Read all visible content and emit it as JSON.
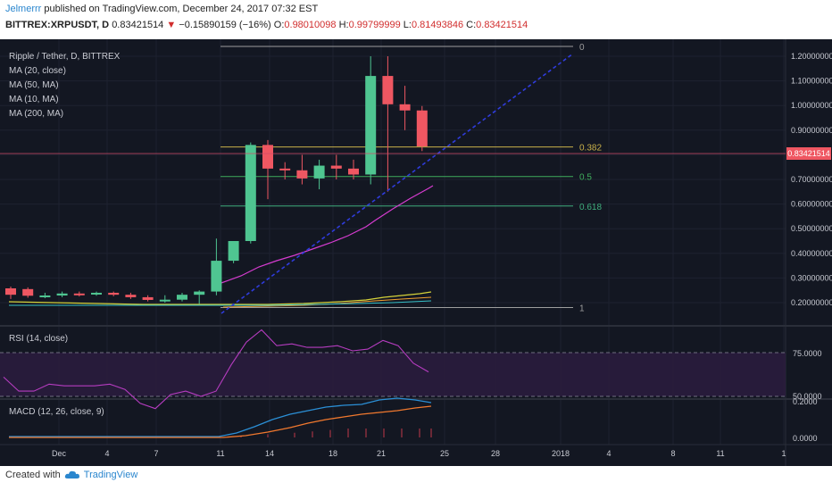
{
  "header": {
    "author": "Jelmerrr",
    "published": "published on TradingView.com, December 24, 2017 07:32 EST",
    "symbol": "BITTREX:XRPUSDT, D",
    "last": "0.83421514",
    "change_arrow": "▼",
    "change": "−0.15890159 (−16%)",
    "open_label": "O:",
    "open": "0.98010098",
    "high_label": "H:",
    "high": "0.99799999",
    "low_label": "L:",
    "low": "0.81493846",
    "close_label": "C:",
    "close": "0.83421514"
  },
  "legend": {
    "title": "Ripple / Tether, D, BITTREX",
    "items": [
      "MA (20, close)",
      "MA (50, MA)",
      "MA (10, MA)",
      "MA (200, MA)"
    ]
  },
  "price_axis": {
    "ticks": [
      "1.20000000",
      "1.10000000",
      "1.00000000",
      "0.90000000",
      "0.70000000",
      "0.60000000",
      "0.50000000",
      "0.40000000",
      "0.30000000",
      "0.20000000"
    ],
    "current_price": "0.83421514"
  },
  "fib": {
    "levels": [
      {
        "label": "0",
        "value": 1.24,
        "color": "#9e9e9e"
      },
      {
        "label": "0.382",
        "value": 0.832,
        "color": "#c9b14a"
      },
      {
        "label": "0.5",
        "value": 0.712,
        "color": "#3fae5c"
      },
      {
        "label": "0.618",
        "value": 0.592,
        "color": "#3fae7c"
      },
      {
        "label": "1",
        "value": 0.18,
        "color": "#9e9e9e"
      }
    ]
  },
  "rsi": {
    "title": "RSI (14, close)",
    "ticks": [
      "75.0000",
      "50.0000"
    ],
    "values": [
      61,
      53,
      53,
      57,
      56,
      56,
      56,
      57,
      54,
      46,
      43,
      51,
      53,
      50,
      53,
      68,
      81,
      88,
      79,
      80,
      78,
      78,
      79,
      76,
      77,
      82,
      79,
      69,
      64
    ]
  },
  "macd": {
    "title": "MACD (12, 26, close, 9)",
    "ticks": [
      "0.2000",
      "0.0000"
    ]
  },
  "x_axis": {
    "labels": [
      "Dec",
      "4",
      "7",
      "11",
      "14",
      "18",
      "21",
      "25",
      "28",
      "2018",
      "4",
      "8",
      "11",
      "1"
    ]
  },
  "footer": {
    "created_with": "Created with",
    "brand": "TradingView"
  },
  "colors": {
    "up": "#4fc591",
    "down": "#ef5762",
    "background": "#131722",
    "trendline": "#2f3cdc",
    "ma20": "#d63cd0",
    "ma50": "#d4d23a",
    "ma10": "#f0a030",
    "ma200": "#35c1c8"
  },
  "chart_data": {
    "type": "candlestick",
    "title": "Ripple / Tether, D, BITTREX",
    "x": [
      "Nov 30",
      "Dec 1",
      "Dec 2",
      "Dec 3",
      "Dec 4",
      "Dec 5",
      "Dec 6",
      "Dec 7",
      "Dec 8",
      "Dec 9",
      "Dec 10",
      "Dec 11",
      "Dec 12",
      "Dec 13",
      "Dec 14",
      "Dec 15",
      "Dec 16",
      "Dec 17",
      "Dec 18",
      "Dec 19",
      "Dec 20",
      "Dec 21",
      "Dec 22",
      "Dec 23",
      "Dec 24"
    ],
    "series": [
      {
        "name": "open",
        "values": [
          0.258,
          0.255,
          0.228,
          0.229,
          0.237,
          0.236,
          0.24,
          0.232,
          0.222,
          0.211,
          0.212,
          0.232,
          0.245,
          0.37,
          0.45,
          0.84,
          0.744,
          0.737,
          0.704,
          0.756,
          0.744,
          0.72,
          1.12,
          1.005,
          0.98
        ]
      },
      {
        "name": "high",
        "values": [
          0.265,
          0.262,
          0.24,
          0.245,
          0.245,
          0.245,
          0.245,
          0.24,
          0.23,
          0.23,
          0.24,
          0.25,
          0.46,
          0.41,
          0.85,
          0.86,
          0.77,
          0.8,
          0.78,
          0.8,
          0.78,
          1.2,
          1.2,
          1.08,
          0.998
        ]
      },
      {
        "name": "low",
        "values": [
          0.215,
          0.22,
          0.218,
          0.222,
          0.225,
          0.228,
          0.226,
          0.215,
          0.205,
          0.2,
          0.205,
          0.195,
          0.23,
          0.36,
          0.44,
          0.62,
          0.7,
          0.68,
          0.66,
          0.7,
          0.7,
          0.68,
          0.65,
          0.9,
          0.815
        ]
      },
      {
        "name": "close",
        "values": [
          0.232,
          0.228,
          0.229,
          0.237,
          0.236,
          0.24,
          0.232,
          0.222,
          0.211,
          0.212,
          0.232,
          0.245,
          0.37,
          0.45,
          0.84,
          0.744,
          0.737,
          0.704,
          0.756,
          0.744,
          0.72,
          1.12,
          1.005,
          0.98,
          0.834
        ]
      }
    ],
    "ylim": [
      0.15,
      1.3
    ]
  }
}
